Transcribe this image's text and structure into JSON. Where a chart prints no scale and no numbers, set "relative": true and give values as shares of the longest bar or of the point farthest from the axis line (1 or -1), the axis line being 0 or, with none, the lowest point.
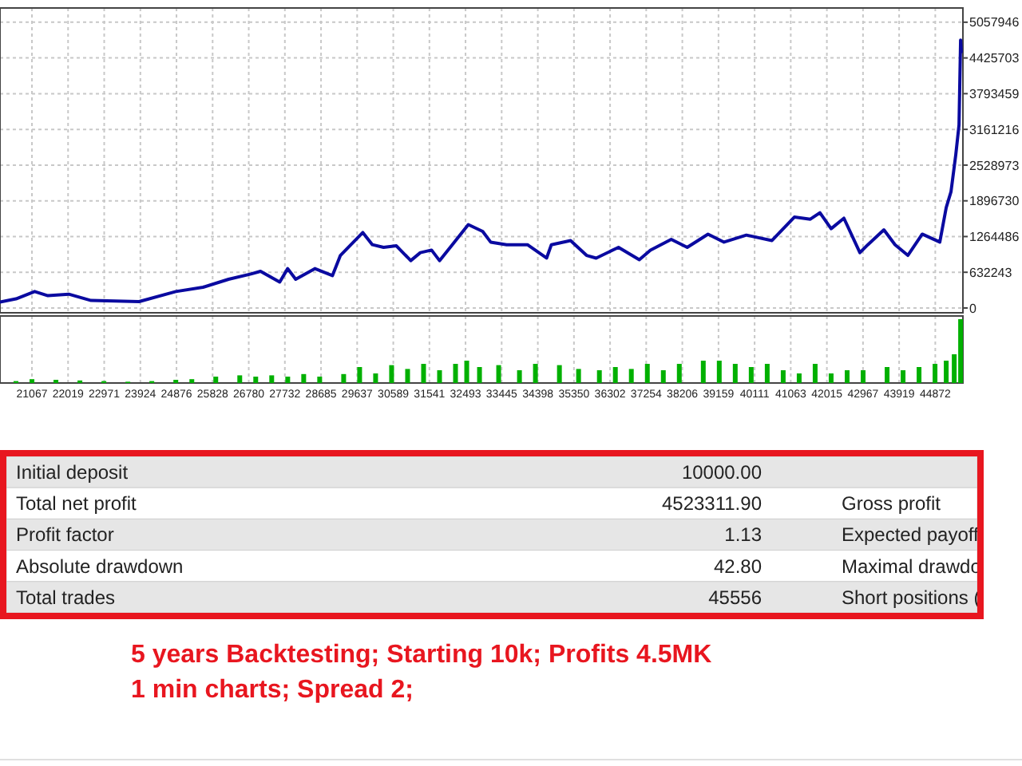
{
  "chart_data": [
    {
      "type": "line",
      "x": [
        20225,
        20646,
        21139,
        21488,
        22036,
        22625,
        23889,
        24858,
        25574,
        26248,
        26837,
        27090,
        27596,
        27806,
        28017,
        28522,
        28985,
        29196,
        29786,
        30038,
        30333,
        30670,
        31049,
        31302,
        31597,
        31808,
        32144,
        32566,
        32944,
        33155,
        33576,
        34124,
        34629,
        34755,
        35261,
        35682,
        35935,
        36524,
        37072,
        37367,
        37914,
        38335,
        38883,
        39305,
        39894,
        40568,
        41158,
        41579,
        41832,
        42127,
        42464,
        42885,
        43095,
        43517,
        43812,
        44149,
        44528,
        44991,
        45160,
        45287,
        45413,
        45497,
        45539,
        45556
      ],
      "series": [
        {
          "color": "#0a0aa0",
          "values": [
            104000,
            161000,
            291000,
            217000,
            245000,
            133000,
            113000,
            291000,
            367000,
            508000,
            601000,
            649000,
            460000,
            697000,
            508000,
            697000,
            573000,
            931000,
            1335000,
            1120000,
            1073000,
            1101000,
            838000,
            979000,
            1025000,
            838000,
            1120000,
            1476000,
            1355000,
            1166000,
            1120000,
            1120000,
            883000,
            1120000,
            1194000,
            931000,
            883000,
            1073000,
            855000,
            1025000,
            1214000,
            1073000,
            1307000,
            1166000,
            1290000,
            1194000,
            1609000,
            1572000,
            1685000,
            1403000,
            1589000,
            979000,
            1120000,
            1383000,
            1120000,
            931000,
            1307000,
            1166000,
            1778000,
            2060000,
            2718000,
            3237000,
            4742000,
            4533000
          ]
        }
      ],
      "xlim": [
        20225,
        45600
      ],
      "ylim": [
        -85000,
        5310000
      ],
      "yticks": [
        0,
        632243,
        1264486,
        1896730,
        2528973,
        3161216,
        3793459,
        4425703,
        5057946
      ],
      "xticks": [
        21067,
        22019,
        22971,
        23924,
        24876,
        25828,
        26780,
        27732,
        28685,
        29637,
        30589,
        31541,
        32493,
        33445,
        34398,
        35350,
        36302,
        37254,
        38206,
        39159,
        40111,
        41063,
        42015,
        42967,
        43919,
        44872
      ],
      "tick_labels": "y",
      "grid": true,
      "line_style": "solid",
      "marker": "none",
      "annotations": [
        "5 years Backtesting; Starting 10k; Profits 4.5MK",
        "1 min charts; Spread 2;"
      ]
    },
    {
      "type": "bar",
      "relative": true,
      "x": [
        20646,
        21067,
        21699,
        22331,
        22963,
        23595,
        24226,
        24858,
        25280,
        25911,
        26543,
        26964,
        27385,
        27807,
        28228,
        28649,
        29281,
        29702,
        30123,
        30544,
        30966,
        31387,
        31808,
        32229,
        32524,
        32861,
        33366,
        33914,
        34335,
        34967,
        35472,
        36020,
        36441,
        36862,
        37284,
        37705,
        38126,
        38758,
        39179,
        39600,
        40021,
        40443,
        40864,
        41285,
        41706,
        42127,
        42549,
        42970,
        43602,
        44023,
        44444,
        44865,
        45160,
        45371,
        45539
      ],
      "series": [
        {
          "color": "#00b000",
          "values": [
            0.03,
            0.06,
            0.05,
            0.04,
            0.03,
            0.02,
            0.03,
            0.05,
            0.06,
            0.1,
            0.12,
            0.1,
            0.12,
            0.1,
            0.14,
            0.1,
            0.14,
            0.25,
            0.15,
            0.28,
            0.22,
            0.3,
            0.2,
            0.3,
            0.35,
            0.25,
            0.28,
            0.2,
            0.3,
            0.28,
            0.22,
            0.2,
            0.25,
            0.22,
            0.3,
            0.2,
            0.3,
            0.35,
            0.35,
            0.3,
            0.25,
            0.3,
            0.2,
            0.15,
            0.3,
            0.15,
            0.2,
            0.2,
            0.25,
            0.2,
            0.25,
            0.3,
            0.35,
            0.45,
            1
          ]
        }
      ],
      "xlim": [
        20225,
        45600
      ],
      "xticks": [
        21067,
        22019,
        22971,
        23924,
        24876,
        25828,
        26780,
        27732,
        28685,
        29637,
        30589,
        31541,
        32493,
        33445,
        34398,
        35350,
        36302,
        37254,
        38206,
        39159,
        40111,
        41063,
        42015,
        42967,
        43919,
        44872
      ],
      "tick_labels": "x",
      "grid": "x"
    },
    {
      "type": "other",
      "annotations": [
        "Initial deposit",
        "Total net profit",
        "Profit factor",
        "Absolute drawdown",
        "Total trades",
        "10000.00",
        "4523311.90",
        "1.13",
        "42.80",
        "45556",
        "Gross profit",
        "Expected payoff",
        "Maximal drawdo",
        "Short positions ("
      ]
    }
  ]
}
